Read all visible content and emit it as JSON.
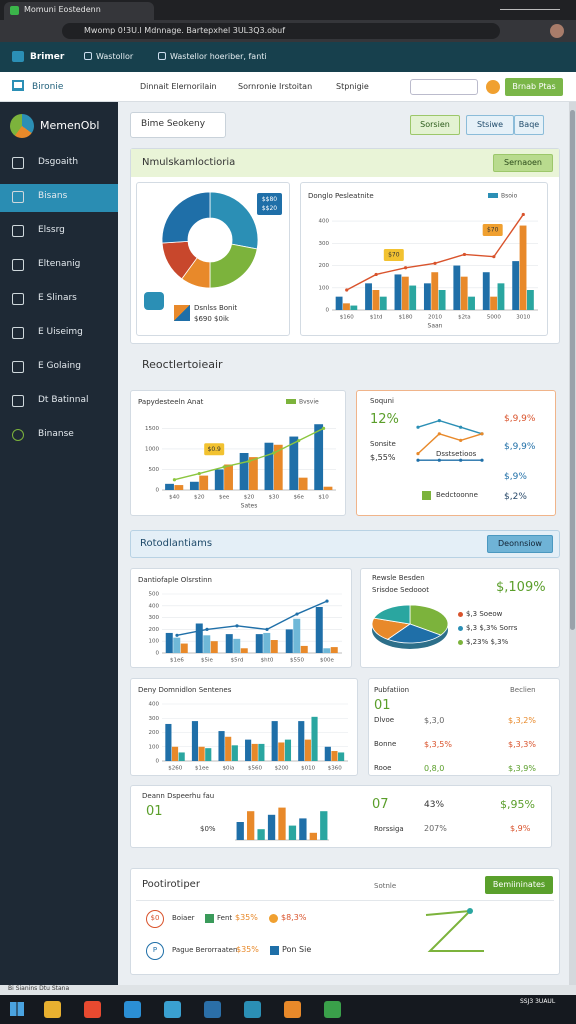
{
  "browser": {
    "tab": "Momuni Eostedenn",
    "url": "Mwomp 0!3U.l Mdnnage. Bartepxhel 3UL3Q3.obuf"
  },
  "topbar": {
    "brand": "Brimer",
    "bookmarks": [
      "Wastollor",
      "Wastellor hoeriber, fanti"
    ]
  },
  "nav": {
    "home": "Bironie",
    "items": [
      "Dinnait Elernorilain",
      "Sornronie Irstoitan",
      "Stpnigie"
    ],
    "action": "Brnab Ptas"
  },
  "sidebar": {
    "logo": "MemenObl",
    "items": [
      "Dsgoaith",
      "Bisans",
      "Elssrg",
      "Eltenanig",
      "E Slinars",
      "E Uiseimg",
      "E Golaing",
      "Dt Batinnal",
      "Binanse"
    ]
  },
  "header": {
    "title": "Bime Seokeny",
    "buttons": [
      "Sorsien",
      "Stsiwe",
      "Baqe"
    ]
  },
  "overview": {
    "title": "Nmulskamloctioria",
    "button": "Sernaoen",
    "donut": {
      "type": "pie",
      "badge": "$$80 $$20",
      "legend": "Dsnlss Bonit",
      "legend_value": "$690 $0ik",
      "values": [
        28,
        22,
        10,
        14,
        26
      ],
      "colors": [
        "#2b8fb5",
        "#7cb33c",
        "#e8892a",
        "#c8472c",
        "#1f6fa8"
      ]
    },
    "trend": {
      "type": "combo",
      "title": "Donglo Pesleatnite",
      "legend": "Bsoio",
      "legend_color": "#2b8fb5",
      "ylim": [
        0,
        450
      ],
      "yticks": [
        0,
        100,
        200,
        300,
        400
      ],
      "categories": [
        "$160",
        "$1td",
        "$180",
        "2010",
        "$2ta",
        "5000",
        "3010"
      ],
      "axis_label": "Saan",
      "series": [
        {
          "color": "#1f6fa8",
          "values": [
            60,
            120,
            160,
            120,
            200,
            170,
            220
          ]
        },
        {
          "color": "#e8892a",
          "values": [
            30,
            90,
            150,
            170,
            150,
            60,
            380
          ]
        },
        {
          "color": "#2aa6a0",
          "values": [
            20,
            60,
            110,
            90,
            60,
            120,
            90
          ]
        }
      ],
      "line": {
        "color": "#d9532c",
        "values": [
          90,
          160,
          190,
          210,
          250,
          240,
          430
        ]
      },
      "annotations": [
        "$70",
        "$70"
      ]
    }
  },
  "reports": {
    "title": "Reoctlertoieair",
    "trend": {
      "type": "combo",
      "title": "Papydesteeln Anat",
      "legend": "Bvsvie",
      "legend_color": "#7cb33c",
      "ylim": [
        0,
        1800
      ],
      "yticks": [
        0,
        500,
        1000,
        1500
      ],
      "categories": [
        "$40",
        "$20",
        "$ee",
        "$20",
        "$30",
        "$6e",
        "$10"
      ],
      "axis_label": "Sates",
      "series": [
        {
          "color": "#1f6fa8",
          "values": [
            150,
            200,
            500,
            900,
            1150,
            1300,
            1600
          ]
        },
        {
          "color": "#e8892a",
          "values": [
            120,
            350,
            620,
            800,
            1100,
            300,
            80
          ]
        }
      ],
      "line": {
        "color": "#8cc63f",
        "values": [
          250,
          400,
          560,
          700,
          900,
          1200,
          1500
        ]
      },
      "annotations": [
        "$0.9"
      ]
    },
    "kpi": {
      "type": "lines",
      "title": "Soquni",
      "value": "12%",
      "label": "Sonsite",
      "label_value": "$,55%",
      "mid": "Dsstsetioos",
      "legend": "Bedctoonne",
      "right": [
        "$,9,9%",
        "$,9,9%",
        "$,9%",
        "$,2%"
      ],
      "ylim": [
        0,
        10
      ],
      "lines": [
        {
          "color": "#2b8fb5",
          "values": [
            8,
            9,
            8,
            7
          ]
        },
        {
          "color": "#e8892a",
          "values": [
            4,
            7,
            6,
            7
          ]
        },
        {
          "color": "#1f6fa8",
          "values": [
            3,
            3,
            3,
            3
          ]
        }
      ]
    }
  },
  "analytics": {
    "title": "Rotodlantiams",
    "button": "Deonnsiow",
    "chart1": {
      "type": "combo",
      "title": "Dantiofaple Olsrstinn",
      "ylim": [
        0,
        500
      ],
      "yticks": [
        0,
        100,
        200,
        300,
        400,
        500
      ],
      "categories": [
        "$1e6",
        "$5ie",
        "$5rd",
        "$ht0",
        "$550",
        "$00e"
      ],
      "series": [
        {
          "color": "#1f6fa8",
          "values": [
            170,
            250,
            160,
            160,
            200,
            390
          ]
        },
        {
          "color": "#6fb8d8",
          "values": [
            130,
            150,
            120,
            170,
            290,
            40
          ]
        },
        {
          "color": "#e8892a",
          "values": [
            80,
            100,
            40,
            110,
            60,
            50
          ]
        }
      ],
      "line": {
        "color": "#1f6fa8",
        "values": [
          150,
          200,
          230,
          200,
          330,
          440
        ]
      }
    },
    "pie": {
      "type": "pie3d",
      "title": "Rewsle Besden",
      "subtitle": "Srisdoe Sedooot",
      "headline": "$,109%",
      "values": [
        35,
        25,
        20,
        20
      ],
      "colors": [
        "#7cb33c",
        "#1f6fa8",
        "#e8892a",
        "#2aa6a0"
      ],
      "legend": [
        "$,3 Soeow",
        "$,3 $,3% Sorrs",
        "$,23% $,3%"
      ]
    },
    "chart2": {
      "type": "combo",
      "title": "Deny Domnidlon Sentenes",
      "ylim": [
        0,
        400
      ],
      "yticks": [
        0,
        100,
        200,
        300,
        400
      ],
      "categories": [
        "$260",
        "$1ee",
        "$0ia",
        "$560",
        "$200",
        "$010",
        "$360"
      ],
      "series": [
        {
          "color": "#1f6fa8",
          "values": [
            260,
            280,
            210,
            150,
            280,
            280,
            100
          ]
        },
        {
          "color": "#e8892a",
          "values": [
            100,
            100,
            170,
            120,
            130,
            150,
            70
          ]
        },
        {
          "color": "#2aa6a0",
          "values": [
            60,
            90,
            110,
            120,
            150,
            310,
            60
          ]
        }
      ]
    },
    "table": {
      "title": "Pubfatiion",
      "header_right": "Beclien",
      "value": "01",
      "rows": [
        [
          "Dlvoe",
          "$,3,0",
          "$,3,2%"
        ],
        [
          "Bonne",
          "$,3,5%",
          "$,3,3%"
        ],
        [
          "Rooe",
          "0,8,0",
          "$,3,9%"
        ]
      ]
    },
    "compact": {
      "type": "bar",
      "title": "Deann Dspeerhu fau",
      "value": "01",
      "pct": "$0%",
      "ylim": [
        0,
        10
      ],
      "values": [
        5,
        8,
        3,
        7,
        9,
        4,
        6,
        2,
        8
      ],
      "colors": [
        "#1f6fa8",
        "#e8892a",
        "#2aa6a0"
      ],
      "right": [
        "07",
        "43%",
        "$,95%",
        "Rorssiga",
        "207%",
        "$,9%"
      ]
    }
  },
  "projects": {
    "title": "Pootirotiper",
    "label": "Sotnle",
    "button": "Bemiininates",
    "rows": [
      {
        "icon": "$0",
        "text": "Boiaer",
        "tag": "Fent",
        "value": "$35%",
        "extra": "$8,3%"
      },
      {
        "icon": "P",
        "text": "Pague Berorraaten",
        "value": "$35%",
        "extra": "Pon Sie"
      }
    ]
  },
  "status": {
    "text": "Bi Sianins Dtu Stana",
    "clock": "SSJ3 3UAUL"
  }
}
